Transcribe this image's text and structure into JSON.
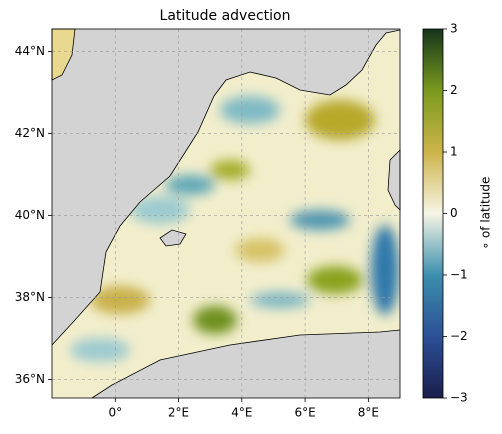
{
  "chart_data": {
    "type": "map",
    "title": "Latitude advection",
    "xlim": [
      -2,
      9
    ],
    "ylim": [
      35.55,
      44.55
    ],
    "xticks": [
      {
        "value": 0,
        "label": "0°"
      },
      {
        "value": 2,
        "label": "2°E"
      },
      {
        "value": 4,
        "label": "4°E"
      },
      {
        "value": 6,
        "label": "6°E"
      },
      {
        "value": 8,
        "label": "8°E"
      }
    ],
    "yticks": [
      {
        "value": 36,
        "label": "36°N"
      },
      {
        "value": 38,
        "label": "38°N"
      },
      {
        "value": 40,
        "label": "40°N"
      },
      {
        "value": 42,
        "label": "42°N"
      },
      {
        "value": 44,
        "label": "44°N"
      }
    ],
    "grid": true,
    "colorbar": {
      "label": "∘ of latitude",
      "clim": [
        -3,
        3
      ],
      "ticks": [
        {
          "value": -3,
          "label": "−3"
        },
        {
          "value": -2,
          "label": "−2"
        },
        {
          "value": -1,
          "label": "−1"
        },
        0,
        1,
        2,
        3
      ],
      "colormap": [
        "#1a1e4c",
        "#2c4f96",
        "#3c8fad",
        "#f6f5e6",
        "#cdb44a",
        "#7a9a1e",
        "#15341c"
      ]
    }
  }
}
